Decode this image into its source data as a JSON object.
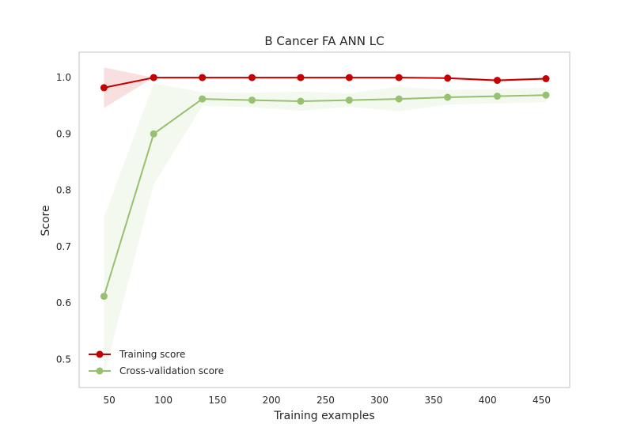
{
  "chart_data": {
    "type": "line",
    "title": "B Cancer FA ANN LC",
    "xlabel": "Training examples",
    "ylabel": "Score",
    "xlim": [
      22,
      476
    ],
    "ylim": [
      0.45,
      1.045
    ],
    "xticks": [
      50,
      100,
      150,
      200,
      250,
      300,
      350,
      400,
      450
    ],
    "yticks": [
      0.5,
      0.6,
      0.7,
      0.8,
      0.9,
      1.0
    ],
    "ytick_labels": [
      "0.5",
      "0.6",
      "0.7",
      "0.8",
      "0.9",
      "1.0"
    ],
    "grid": false,
    "legend": "lower-left",
    "x": [
      45,
      91,
      136,
      182,
      227,
      272,
      318,
      363,
      409,
      454
    ],
    "series": [
      {
        "name": "Training score",
        "color": "#c40000",
        "values": [
          0.982,
          1.0,
          1.0,
          1.0,
          1.0,
          1.0,
          1.0,
          0.999,
          0.995,
          0.998
        ],
        "band_low": [
          0.946,
          1.0,
          1.0,
          1.0,
          1.0,
          1.0,
          1.0,
          0.997,
          0.992,
          0.996
        ],
        "band_high": [
          1.018,
          1.0,
          1.0,
          1.0,
          1.0,
          1.0,
          1.0,
          1.0,
          0.998,
          1.0
        ]
      },
      {
        "name": "Cross-validation score",
        "color": "#97c070",
        "values": [
          0.612,
          0.9,
          0.962,
          0.96,
          0.958,
          0.96,
          0.962,
          0.965,
          0.967,
          0.969
        ],
        "band_low": [
          0.472,
          0.81,
          0.95,
          0.947,
          0.941,
          0.948,
          0.94,
          0.952,
          0.954,
          0.956
        ],
        "band_high": [
          0.752,
          0.99,
          0.974,
          0.973,
          0.975,
          0.972,
          0.984,
          0.978,
          0.98,
          0.982
        ]
      }
    ]
  }
}
